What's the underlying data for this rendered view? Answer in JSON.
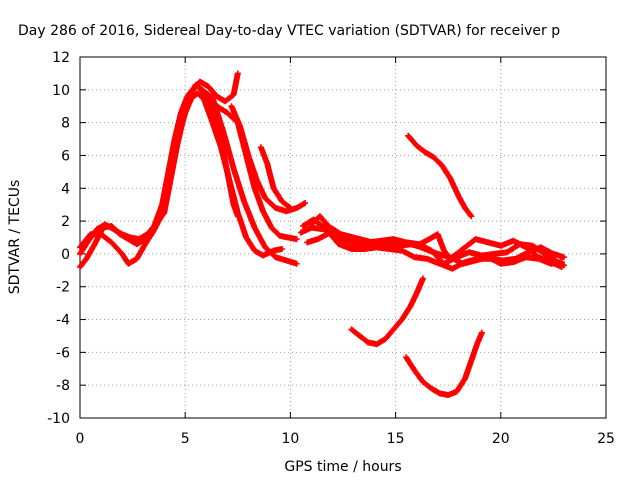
{
  "chart_data": {
    "type": "scatter",
    "title": "Day 286 of 2016, Sidereal Day-to-day VTEC variation (SDTVAR) for receiver p",
    "xlabel": "GPS time / hours",
    "ylabel": "SDTVAR / TECUs",
    "xlim": [
      0,
      25
    ],
    "ylim": [
      -10,
      12
    ],
    "xticks": [
      0,
      5,
      10,
      15,
      20,
      25
    ],
    "yticks": [
      -10,
      -8,
      -6,
      -4,
      -2,
      0,
      2,
      4,
      6,
      8,
      10,
      12
    ],
    "grid": true,
    "legend": "none",
    "marker": "plus",
    "color": "#ff0000",
    "series": [
      {
        "points": [
          [
            0,
            0
          ],
          [
            0.4,
            0.8
          ],
          [
            0.8,
            1.5
          ],
          [
            1.2,
            1.8
          ],
          [
            1.6,
            1.5
          ],
          [
            2.0,
            1.2
          ],
          [
            2.4,
            1.0
          ],
          [
            2.8,
            0.9
          ],
          [
            3.2,
            1.2
          ],
          [
            3.6,
            1.8
          ],
          [
            4.0,
            2.5
          ],
          [
            4.3,
            4.5
          ],
          [
            4.6,
            6.5
          ],
          [
            4.9,
            8.2
          ],
          [
            5.2,
            9.5
          ],
          [
            5.5,
            10.3
          ],
          [
            5.8,
            10.0
          ],
          [
            6.2,
            9.0
          ],
          [
            6.6,
            7.5
          ],
          [
            7.0,
            5.0
          ],
          [
            7.3,
            3.0
          ],
          [
            7.5,
            2.3
          ]
        ]
      },
      {
        "points": [
          [
            0,
            -0.8
          ],
          [
            0.3,
            -0.3
          ],
          [
            0.7,
            0.6
          ],
          [
            1.1,
            1.6
          ],
          [
            1.5,
            1.7
          ],
          [
            1.9,
            1.2
          ],
          [
            2.3,
            0.9
          ],
          [
            2.7,
            0.6
          ],
          [
            3.1,
            0.9
          ],
          [
            3.5,
            1.6
          ],
          [
            3.9,
            3.0
          ],
          [
            4.2,
            5.0
          ],
          [
            4.5,
            7.0
          ],
          [
            4.8,
            8.6
          ],
          [
            5.1,
            9.6
          ],
          [
            5.4,
            10.1
          ],
          [
            5.7,
            10.5
          ],
          [
            6.1,
            10.2
          ],
          [
            6.5,
            9.6
          ],
          [
            6.9,
            9.3
          ],
          [
            7.3,
            9.7
          ],
          [
            7.5,
            11.0
          ]
        ]
      },
      {
        "points": [
          [
            0,
            0.4
          ],
          [
            0.5,
            1.2
          ],
          [
            1.0,
            1.2
          ],
          [
            1.5,
            0.7
          ],
          [
            2.0,
            0.0
          ],
          [
            2.3,
            -0.6
          ],
          [
            2.7,
            -0.3
          ],
          [
            3.1,
            0.6
          ],
          [
            3.5,
            1.4
          ],
          [
            3.9,
            2.4
          ],
          [
            4.3,
            4.8
          ],
          [
            4.7,
            7.2
          ],
          [
            5.0,
            8.6
          ],
          [
            5.3,
            9.5
          ],
          [
            5.6,
            9.8
          ],
          [
            5.9,
            9.4
          ],
          [
            6.3,
            8.0
          ],
          [
            6.7,
            6.5
          ],
          [
            7.1,
            4.5
          ],
          [
            7.5,
            2.5
          ],
          [
            7.9,
            1.0
          ],
          [
            8.3,
            0.2
          ],
          [
            8.7,
            -0.1
          ],
          [
            9.2,
            0.2
          ],
          [
            9.6,
            0.3
          ]
        ]
      },
      {
        "points": [
          [
            5.8,
            10.0
          ],
          [
            6.3,
            9.5
          ],
          [
            6.8,
            7.5
          ],
          [
            7.3,
            5.2
          ],
          [
            7.8,
            3.2
          ],
          [
            8.3,
            1.6
          ],
          [
            8.8,
            0.4
          ],
          [
            9.3,
            -0.2
          ],
          [
            9.8,
            -0.4
          ],
          [
            10.3,
            -0.6
          ]
        ]
      },
      {
        "points": [
          [
            6.0,
            9.8
          ],
          [
            6.5,
            9.0
          ],
          [
            7.0,
            8.6
          ],
          [
            7.5,
            8.0
          ],
          [
            7.9,
            6.0
          ],
          [
            8.3,
            4.0
          ],
          [
            8.7,
            2.6
          ],
          [
            9.1,
            1.6
          ],
          [
            9.5,
            1.1
          ],
          [
            9.9,
            1.0
          ],
          [
            10.3,
            0.9
          ]
        ]
      },
      {
        "points": [
          [
            7.2,
            9.0
          ],
          [
            7.6,
            7.8
          ],
          [
            8.0,
            6.0
          ],
          [
            8.4,
            4.5
          ],
          [
            8.8,
            3.4
          ],
          [
            9.3,
            2.8
          ],
          [
            9.8,
            2.6
          ],
          [
            10.3,
            2.8
          ],
          [
            10.7,
            3.1
          ]
        ]
      },
      {
        "points": [
          [
            8.6,
            6.5
          ],
          [
            8.9,
            5.5
          ],
          [
            9.2,
            4.0
          ],
          [
            9.6,
            3.2
          ],
          [
            10.0,
            2.8
          ]
        ]
      },
      {
        "points": [
          [
            11.0,
            1.8
          ],
          [
            11.4,
            2.3
          ],
          [
            11.8,
            1.7
          ],
          [
            12.4,
            1.2
          ],
          [
            13.0,
            1.0
          ],
          [
            13.6,
            0.8
          ],
          [
            14.2,
            0.6
          ],
          [
            14.8,
            0.6
          ],
          [
            15.4,
            0.7
          ],
          [
            16.0,
            0.5
          ],
          [
            16.6,
            0.9
          ],
          [
            17.0,
            1.2
          ],
          [
            17.3,
            0.2
          ],
          [
            17.6,
            -0.3
          ],
          [
            18.2,
            0.3
          ],
          [
            18.8,
            0.9
          ],
          [
            19.4,
            0.7
          ],
          [
            20.0,
            0.5
          ],
          [
            20.6,
            0.8
          ],
          [
            21.2,
            0.4
          ],
          [
            21.8,
            -0.2
          ],
          [
            22.4,
            -0.5
          ],
          [
            22.9,
            -0.8
          ]
        ]
      },
      {
        "points": [
          [
            10.5,
            1.3
          ],
          [
            11.0,
            1.6
          ],
          [
            11.6,
            1.5
          ],
          [
            12.2,
            1.0
          ],
          [
            12.8,
            0.7
          ],
          [
            13.4,
            0.5
          ],
          [
            14.0,
            0.6
          ],
          [
            14.6,
            0.7
          ],
          [
            15.2,
            0.5
          ],
          [
            15.8,
            0.6
          ],
          [
            16.4,
            0.3
          ],
          [
            17.0,
            0.0
          ],
          [
            17.6,
            -0.2
          ],
          [
            18.2,
            -0.6
          ],
          [
            18.8,
            -0.4
          ],
          [
            19.4,
            -0.2
          ],
          [
            20.0,
            -0.6
          ],
          [
            20.6,
            -0.5
          ],
          [
            21.2,
            -0.2
          ],
          [
            21.8,
            -0.3
          ],
          [
            22.4,
            -0.6
          ],
          [
            22.9,
            -0.5
          ]
        ]
      },
      {
        "points": [
          [
            10.8,
            0.7
          ],
          [
            11.3,
            0.9
          ],
          [
            11.9,
            1.3
          ],
          [
            12.5,
            1.1
          ],
          [
            13.1,
            0.7
          ],
          [
            13.7,
            0.7
          ],
          [
            14.3,
            0.8
          ],
          [
            14.9,
            0.9
          ],
          [
            15.5,
            0.7
          ],
          [
            16.1,
            0.6
          ],
          [
            16.7,
            0.2
          ],
          [
            17.3,
            -0.6
          ],
          [
            17.9,
            -0.2
          ],
          [
            18.5,
            0.1
          ],
          [
            19.1,
            -0.1
          ],
          [
            19.7,
            0.0
          ],
          [
            20.3,
            0.1
          ],
          [
            20.9,
            0.6
          ],
          [
            21.5,
            0.5
          ],
          [
            22.1,
            0.0
          ],
          [
            22.7,
            -0.5
          ],
          [
            23.0,
            -0.7
          ]
        ]
      },
      {
        "points": [
          [
            10.6,
            1.7
          ],
          [
            11.1,
            2.1
          ],
          [
            11.7,
            1.5
          ],
          [
            12.3,
            0.6
          ],
          [
            12.9,
            0.3
          ],
          [
            13.5,
            0.3
          ],
          [
            14.1,
            0.4
          ],
          [
            14.7,
            0.3
          ],
          [
            15.3,
            0.2
          ],
          [
            15.9,
            -0.2
          ],
          [
            16.5,
            -0.3
          ],
          [
            17.1,
            -0.6
          ],
          [
            17.7,
            -0.9
          ],
          [
            18.3,
            -0.5
          ],
          [
            18.9,
            -0.3
          ],
          [
            19.5,
            -0.3
          ],
          [
            20.1,
            -0.4
          ],
          [
            20.7,
            -0.3
          ],
          [
            21.3,
            0.1
          ],
          [
            21.9,
            0.4
          ],
          [
            22.5,
            0.0
          ],
          [
            23.0,
            -0.2
          ]
        ]
      },
      {
        "points": [
          [
            15.6,
            7.2
          ],
          [
            16.0,
            6.6
          ],
          [
            16.4,
            6.2
          ],
          [
            16.8,
            5.9
          ],
          [
            17.2,
            5.4
          ],
          [
            17.6,
            4.6
          ],
          [
            18.0,
            3.5
          ],
          [
            18.3,
            2.8
          ],
          [
            18.6,
            2.3
          ]
        ]
      },
      {
        "points": [
          [
            12.9,
            -4.6
          ],
          [
            13.3,
            -5.0
          ],
          [
            13.7,
            -5.4
          ],
          [
            14.1,
            -5.5
          ],
          [
            14.5,
            -5.2
          ],
          [
            14.9,
            -4.6
          ],
          [
            15.3,
            -4.0
          ],
          [
            15.7,
            -3.2
          ],
          [
            16.0,
            -2.4
          ],
          [
            16.3,
            -1.5
          ]
        ]
      },
      {
        "points": [
          [
            15.5,
            -6.3
          ],
          [
            15.9,
            -7.1
          ],
          [
            16.3,
            -7.8
          ],
          [
            16.7,
            -8.2
          ],
          [
            17.1,
            -8.5
          ],
          [
            17.5,
            -8.6
          ],
          [
            17.9,
            -8.4
          ],
          [
            18.3,
            -7.6
          ],
          [
            18.6,
            -6.5
          ],
          [
            18.9,
            -5.4
          ],
          [
            19.1,
            -4.8
          ]
        ]
      }
    ]
  }
}
